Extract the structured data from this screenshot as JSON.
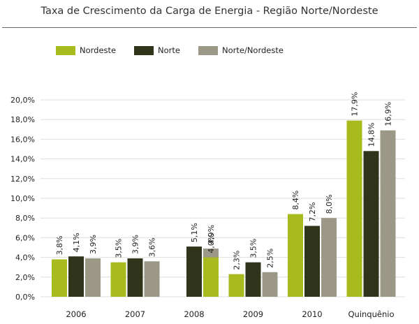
{
  "chart_data": {
    "type": "bar",
    "title": "Taxa de Crescimento da Carga de Energia - Região Norte/Nordeste",
    "xlabel": "",
    "ylabel": "",
    "categories": [
      "2006",
      "2007",
      "2008",
      "2009",
      "2010",
      "Quinquênio"
    ],
    "series": [
      {
        "name": "Nordeste",
        "color": "#a8bb1e",
        "values": [
          3.8,
          3.5,
          null,
          2.3,
          8.4,
          17.9
        ],
        "labels": [
          "3,8%",
          "3,5%",
          "",
          "2,3%",
          "8,4%",
          "17,9%"
        ]
      },
      {
        "name": "Norte",
        "color": "#2f341b",
        "values": [
          4.1,
          3.9,
          5.1,
          3.5,
          7.2,
          14.8
        ],
        "labels": [
          "4,1%",
          "3,9%",
          "5,1%",
          "3,5%",
          "7,2%",
          "14,8%"
        ]
      },
      {
        "name": "Norte/Nordeste",
        "color": "#9b9887",
        "values": [
          3.9,
          3.6,
          4.9,
          2.5,
          8.0,
          16.9
        ],
        "labels": [
          "3,9%",
          "3,6%",
          "4,9%",
          "2,5%",
          "8,0%",
          "16,9%"
        ]
      }
    ],
    "extra_bars": [
      {
        "category": "2008",
        "series": "Nordeste",
        "value": 4.0,
        "label": "4,0%"
      }
    ],
    "ylim": [
      0,
      20
    ],
    "yticks": [
      0,
      2,
      4,
      6,
      8,
      10,
      12,
      14,
      16,
      18,
      20
    ],
    "ytick_labels": [
      "0,0%",
      "2,0%",
      "4,0%",
      "6,0%",
      "8,0%",
      "10,0%",
      "12,0%",
      "14,0%",
      "16,0%",
      "18,0%",
      "20,0%"
    ],
    "grid": true,
    "legend_position": "top-left"
  }
}
